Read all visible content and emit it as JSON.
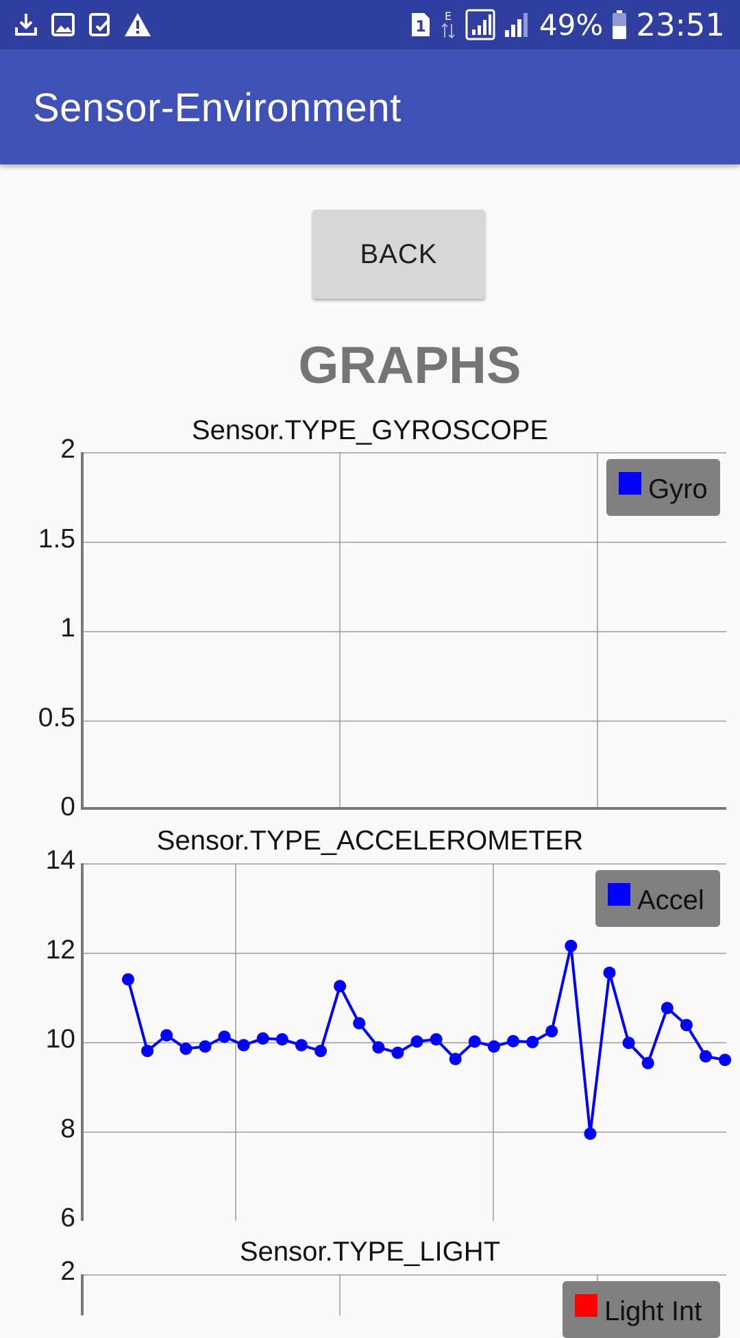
{
  "status_bar": {
    "icons_left": [
      "download-icon",
      "image-icon",
      "clipboard-check-icon",
      "warning-icon"
    ],
    "icons_right": [
      "sim1-icon",
      "data-e-icon",
      "signal-icon",
      "signal-icon"
    ],
    "battery": "49%",
    "time": "23:51"
  },
  "app_bar": {
    "title": "Sensor-Environment"
  },
  "back_button": {
    "label": "BACK"
  },
  "heading": "GRAPHS",
  "colors": {
    "primary": "#3f51b5",
    "primary_dark": "#303f9f",
    "series_blue": "#0000ff",
    "series_red": "#ff0000",
    "legend_bg": "#7f7f7f"
  },
  "chart_data": [
    {
      "type": "line",
      "title": "Sensor.TYPE_GYROSCOPE",
      "ylim": [
        0,
        2
      ],
      "yticks": [
        "2",
        "1.5",
        "1",
        "0.5",
        "0"
      ],
      "grid": true,
      "legend_position": "top-right",
      "series": [
        {
          "name": "Gyro",
          "color": "#0000ff",
          "values": []
        }
      ]
    },
    {
      "type": "line",
      "title": "Sensor.TYPE_ACCELEROMETER",
      "ylim": [
        6,
        14
      ],
      "yticks": [
        "14",
        "12",
        "10",
        "8",
        "6"
      ],
      "grid": true,
      "legend_position": "top-right",
      "series": [
        {
          "name": "Accel",
          "color": "#0000ff",
          "values": [
            11.4,
            9.8,
            10.15,
            9.85,
            9.9,
            10.12,
            9.93,
            10.08,
            10.06,
            9.93,
            9.8,
            11.25,
            10.42,
            9.88,
            9.76,
            10.01,
            10.06,
            9.62,
            10.01,
            9.9,
            10.02,
            10.0,
            10.24,
            12.15,
            7.95,
            11.55,
            9.98,
            9.53,
            10.76,
            10.38,
            9.68,
            9.6
          ]
        }
      ]
    },
    {
      "type": "line",
      "title": "Sensor.TYPE_LIGHT",
      "ylim": [
        null,
        2
      ],
      "yticks": [
        "2"
      ],
      "grid": true,
      "legend_position": "top-right",
      "series": [
        {
          "name": "Light Int",
          "color": "#ff0000",
          "values": []
        }
      ]
    }
  ]
}
